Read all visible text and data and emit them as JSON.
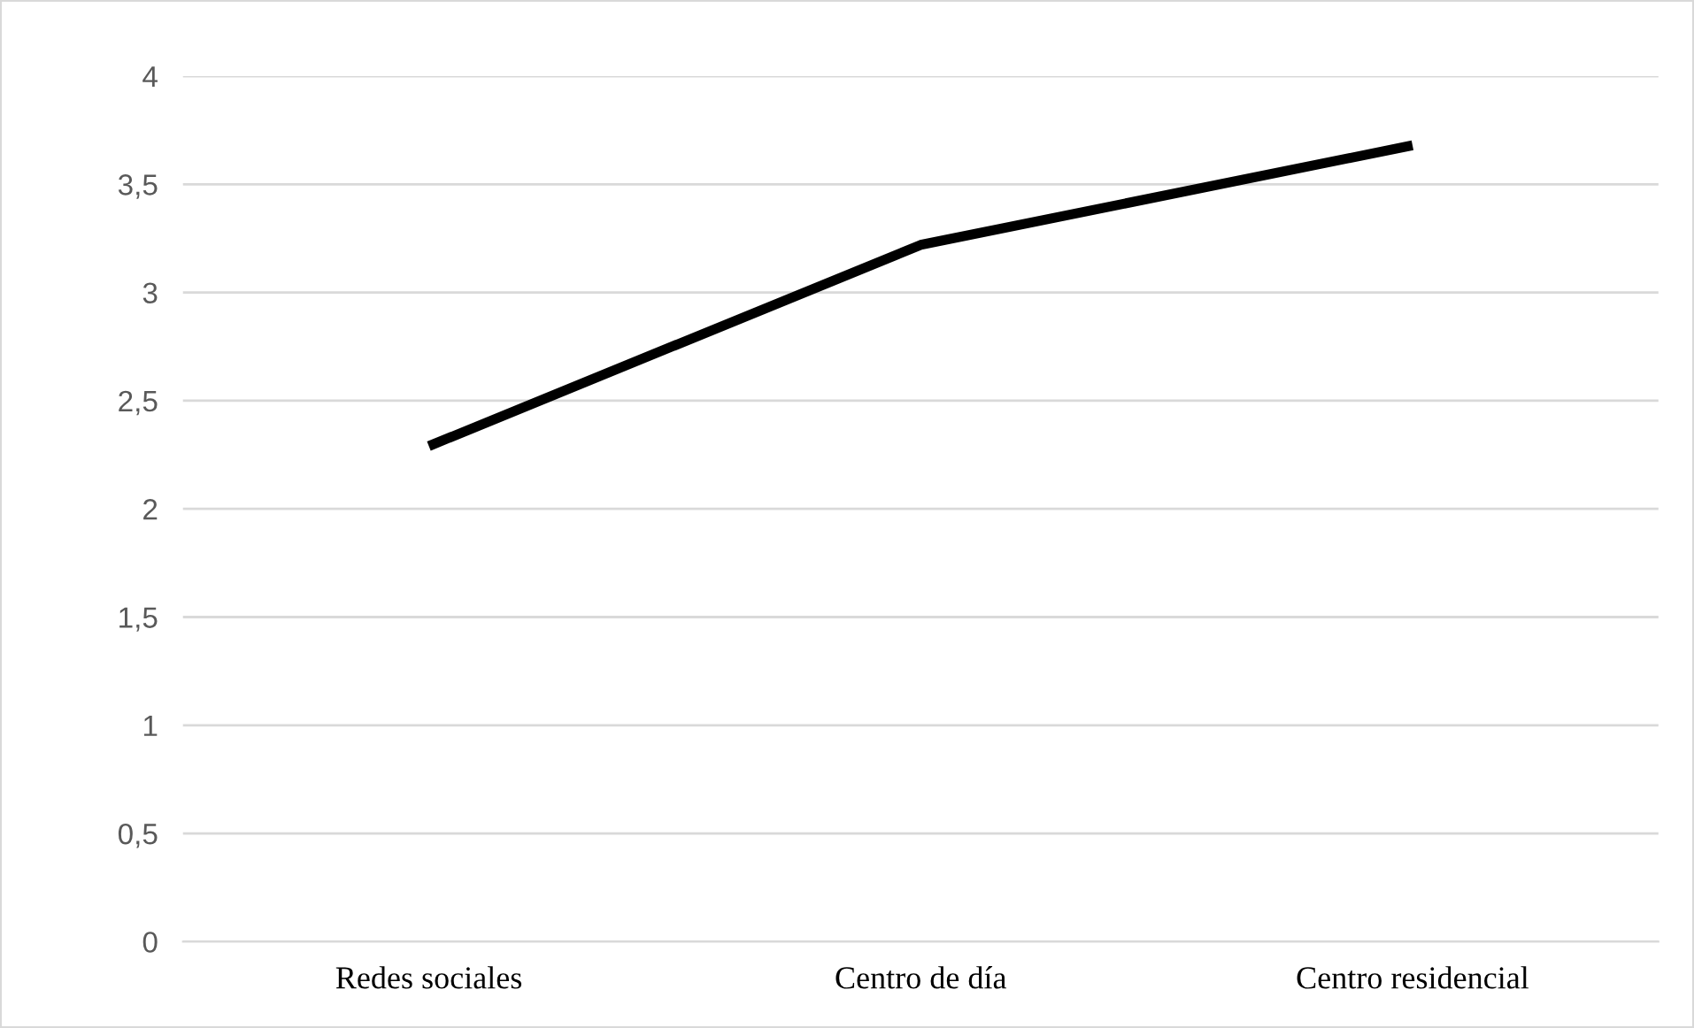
{
  "chart_data": {
    "type": "line",
    "categories": [
      "Redes sociales",
      "Centro de día",
      "Centro residencial"
    ],
    "series": [
      {
        "color": "#000000",
        "values": [
          2.29,
          3.22,
          3.68
        ]
      }
    ],
    "ylim": [
      0,
      4
    ],
    "yticks": [
      0,
      {
        "value": 0.5,
        "label": "0,5"
      },
      1,
      {
        "value": 1.5,
        "label": "1,5"
      },
      2,
      {
        "value": 2.5,
        "label": "2,5"
      },
      3,
      {
        "value": 3.5,
        "label": "3,5"
      },
      4
    ],
    "grid": "y",
    "legend": false,
    "marker": "none",
    "line_style": "solid"
  }
}
